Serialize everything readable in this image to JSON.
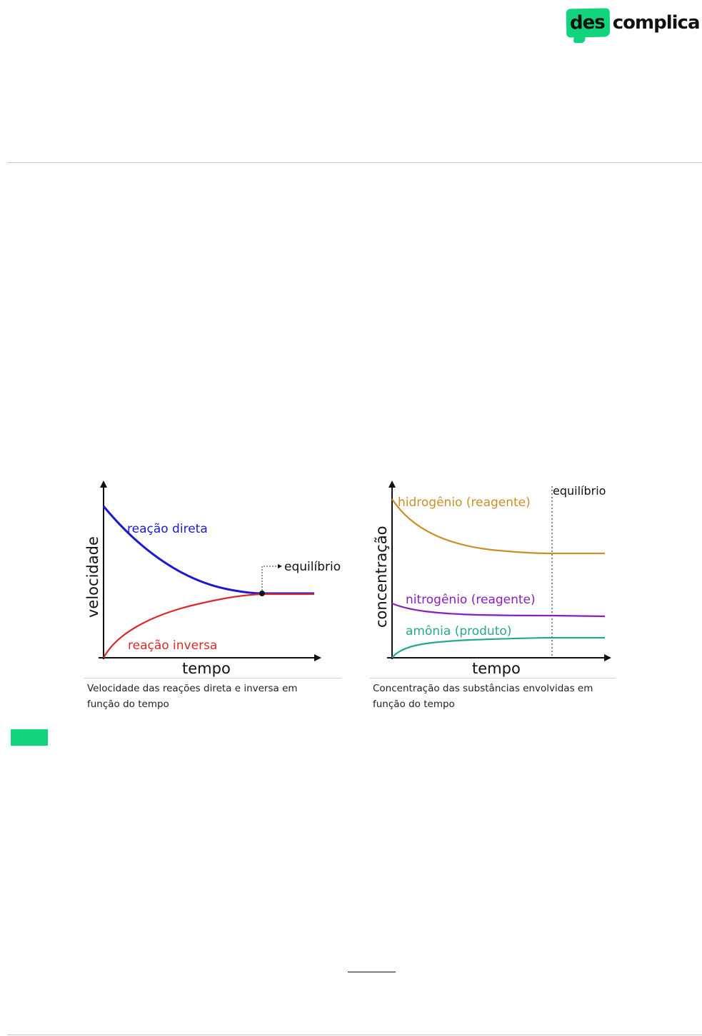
{
  "header": {
    "logo_left": "des",
    "logo_right": "complica",
    "brand_color": "#11d47d"
  },
  "figure_left": {
    "caption": "Velocidade das reações direta e inversa em função do tempo",
    "chart_data": {
      "type": "line",
      "xlabel": "tempo",
      "ylabel": "velocidade",
      "grid": false,
      "series": [
        {
          "name": "reação direta",
          "color": "#1a1ad1",
          "shape": "decreasing to equilibrium"
        },
        {
          "name": "reação inversa",
          "color": "#d82a2a",
          "shape": "increasing to equilibrium"
        }
      ],
      "annotations": [
        "equilíbrio"
      ],
      "axis_color": "#111111"
    }
  },
  "figure_right": {
    "caption": "Concentração das substâncias envolvidas em função do tempo",
    "chart_data": {
      "type": "line",
      "xlabel": "tempo",
      "ylabel": "concentração",
      "grid": false,
      "series": [
        {
          "name": "hidrogênio (reagente)",
          "color": "#c9902a",
          "shape": "decreasing to plateau"
        },
        {
          "name": "nitrogênio (reagente)",
          "color": "#8a1fb8",
          "shape": "slightly decreasing to plateau"
        },
        {
          "name": "amônia (produto)",
          "color": "#24a88f",
          "shape": "increasing to plateau"
        }
      ],
      "annotations": [
        "equilíbrio"
      ],
      "axis_color": "#111111"
    }
  }
}
